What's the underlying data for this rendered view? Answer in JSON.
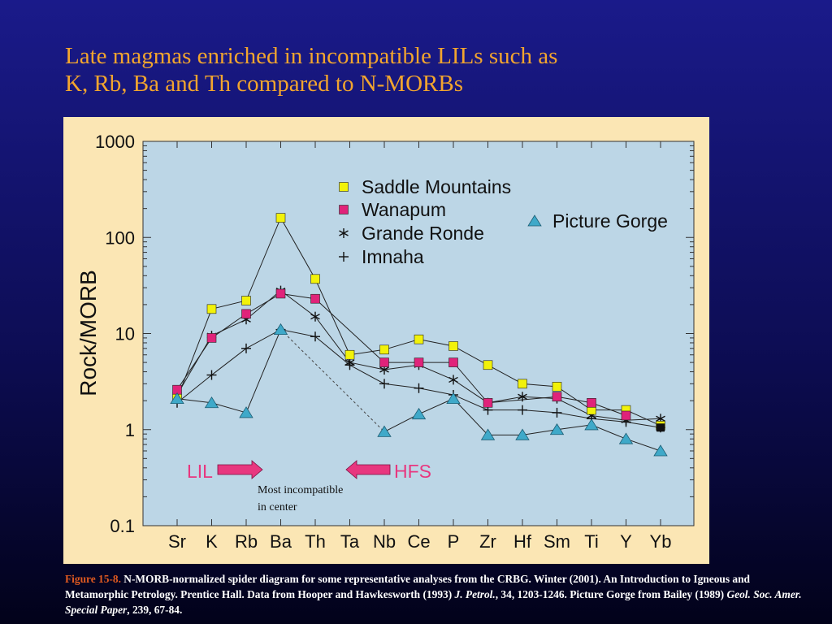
{
  "slide": {
    "title_line1": "Late magmas enriched in incompatible  LILs such as",
    "title_line2": "K, Rb, Ba and Th compared to N-MORBs",
    "title_color": "#f2a52e"
  },
  "caption": {
    "label": "Figure 15-8.",
    "text1": " N-MORB-normalized spider diagram for some representative analyses from the CRBG. Winter (2001). An Introduction to Igneous and Metamorphic Petrology. Prentice Hall. Data from Hooper and Hawkesworth (1993) ",
    "journal1": "J. Petrol.",
    "text2": ", 34, 1203-1246. Picture Gorge from Bailey (1989) ",
    "journal2": "Geol. Soc. Amer. Special Paper",
    "text3": ", 239, 67-84."
  },
  "chart_data": {
    "type": "line",
    "ylabel": "Rock/MORB",
    "yscale": "log",
    "ylim": [
      0.1,
      1000
    ],
    "yticks": [
      "1000",
      "100",
      "10",
      "1",
      "0.1"
    ],
    "categories": [
      "Sr",
      "K",
      "Rb",
      "Ba",
      "Th",
      "Ta",
      "Nb",
      "Ce",
      "P",
      "Zr",
      "Hf",
      "Sm",
      "Ti",
      "Y",
      "Yb"
    ],
    "series": [
      {
        "name": "Saddle Mountains",
        "marker": "square",
        "color": "#f2f20a",
        "values": [
          2.1,
          18,
          22,
          160,
          37,
          6,
          6.8,
          8.7,
          7.4,
          4.7,
          3.0,
          2.8,
          1.6,
          1.6,
          1.1
        ]
      },
      {
        "name": "Wanapum",
        "marker": "square",
        "color": "#e0237a",
        "values": [
          2.6,
          9,
          16,
          26,
          23,
          null,
          5,
          5,
          5,
          1.9,
          null,
          2.2,
          1.9,
          1.4,
          null
        ]
      },
      {
        "name": "Grande Ronde",
        "marker": "asterisk",
        "color": "#111111",
        "values": [
          2.3,
          9.5,
          14,
          28,
          15,
          5,
          4.2,
          4.7,
          3.3,
          1.9,
          2.2,
          2.1,
          1.4,
          1.25,
          1.3
        ]
      },
      {
        "name": "Imnaha",
        "marker": "plus",
        "color": "#111111",
        "values": [
          1.9,
          3.7,
          7,
          11,
          9.3,
          4.7,
          3.0,
          2.7,
          2.3,
          1.6,
          1.6,
          1.5,
          1.3,
          1.2,
          1.05
        ]
      },
      {
        "name": "Picture Gorge",
        "marker": "triangle",
        "color": "#3fa9c9",
        "values": [
          2.1,
          1.9,
          1.5,
          11,
          null,
          null,
          0.95,
          1.45,
          2.1,
          0.88,
          0.88,
          1.0,
          1.12,
          0.8,
          0.6
        ]
      }
    ],
    "connector": {
      "from": "Ba",
      "to": "Nb",
      "series": "Picture Gorge",
      "style": "dashed"
    },
    "annotations": {
      "lil_label": "LIL",
      "hfs_label": "HFS",
      "note_line1": "Most incompatible",
      "note_line2": "in center"
    },
    "grid": false,
    "legend_position": "top-right",
    "plot_bg": "#bcd6e6",
    "panel_bg": "#fbe6b4",
    "arrow_color": "#e8377f",
    "label_color": "#e8377f"
  }
}
